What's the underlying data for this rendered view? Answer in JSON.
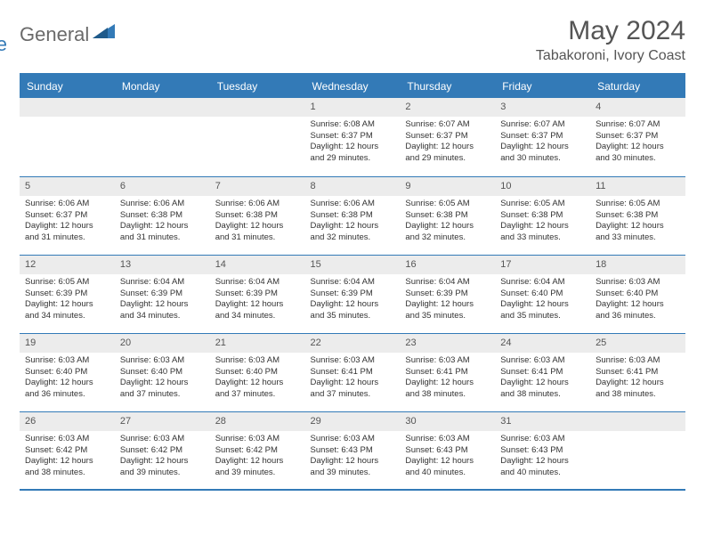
{
  "logo": {
    "text1": "General",
    "text2": "Blue"
  },
  "title": "May 2024",
  "location": "Tabakoroni, Ivory Coast",
  "colors": {
    "brand": "#337ab7",
    "header_bg": "#337ab7",
    "header_text": "#ffffff",
    "daynum_bg": "#ececec",
    "text": "#333333",
    "muted": "#555555"
  },
  "day_headers": [
    "Sunday",
    "Monday",
    "Tuesday",
    "Wednesday",
    "Thursday",
    "Friday",
    "Saturday"
  ],
  "weeks": [
    [
      {
        "n": "",
        "sr": "",
        "ss": "",
        "dl": ""
      },
      {
        "n": "",
        "sr": "",
        "ss": "",
        "dl": ""
      },
      {
        "n": "",
        "sr": "",
        "ss": "",
        "dl": ""
      },
      {
        "n": "1",
        "sr": "Sunrise: 6:08 AM",
        "ss": "Sunset: 6:37 PM",
        "dl": "Daylight: 12 hours and 29 minutes."
      },
      {
        "n": "2",
        "sr": "Sunrise: 6:07 AM",
        "ss": "Sunset: 6:37 PM",
        "dl": "Daylight: 12 hours and 29 minutes."
      },
      {
        "n": "3",
        "sr": "Sunrise: 6:07 AM",
        "ss": "Sunset: 6:37 PM",
        "dl": "Daylight: 12 hours and 30 minutes."
      },
      {
        "n": "4",
        "sr": "Sunrise: 6:07 AM",
        "ss": "Sunset: 6:37 PM",
        "dl": "Daylight: 12 hours and 30 minutes."
      }
    ],
    [
      {
        "n": "5",
        "sr": "Sunrise: 6:06 AM",
        "ss": "Sunset: 6:37 PM",
        "dl": "Daylight: 12 hours and 31 minutes."
      },
      {
        "n": "6",
        "sr": "Sunrise: 6:06 AM",
        "ss": "Sunset: 6:38 PM",
        "dl": "Daylight: 12 hours and 31 minutes."
      },
      {
        "n": "7",
        "sr": "Sunrise: 6:06 AM",
        "ss": "Sunset: 6:38 PM",
        "dl": "Daylight: 12 hours and 31 minutes."
      },
      {
        "n": "8",
        "sr": "Sunrise: 6:06 AM",
        "ss": "Sunset: 6:38 PM",
        "dl": "Daylight: 12 hours and 32 minutes."
      },
      {
        "n": "9",
        "sr": "Sunrise: 6:05 AM",
        "ss": "Sunset: 6:38 PM",
        "dl": "Daylight: 12 hours and 32 minutes."
      },
      {
        "n": "10",
        "sr": "Sunrise: 6:05 AM",
        "ss": "Sunset: 6:38 PM",
        "dl": "Daylight: 12 hours and 33 minutes."
      },
      {
        "n": "11",
        "sr": "Sunrise: 6:05 AM",
        "ss": "Sunset: 6:38 PM",
        "dl": "Daylight: 12 hours and 33 minutes."
      }
    ],
    [
      {
        "n": "12",
        "sr": "Sunrise: 6:05 AM",
        "ss": "Sunset: 6:39 PM",
        "dl": "Daylight: 12 hours and 34 minutes."
      },
      {
        "n": "13",
        "sr": "Sunrise: 6:04 AM",
        "ss": "Sunset: 6:39 PM",
        "dl": "Daylight: 12 hours and 34 minutes."
      },
      {
        "n": "14",
        "sr": "Sunrise: 6:04 AM",
        "ss": "Sunset: 6:39 PM",
        "dl": "Daylight: 12 hours and 34 minutes."
      },
      {
        "n": "15",
        "sr": "Sunrise: 6:04 AM",
        "ss": "Sunset: 6:39 PM",
        "dl": "Daylight: 12 hours and 35 minutes."
      },
      {
        "n": "16",
        "sr": "Sunrise: 6:04 AM",
        "ss": "Sunset: 6:39 PM",
        "dl": "Daylight: 12 hours and 35 minutes."
      },
      {
        "n": "17",
        "sr": "Sunrise: 6:04 AM",
        "ss": "Sunset: 6:40 PM",
        "dl": "Daylight: 12 hours and 35 minutes."
      },
      {
        "n": "18",
        "sr": "Sunrise: 6:03 AM",
        "ss": "Sunset: 6:40 PM",
        "dl": "Daylight: 12 hours and 36 minutes."
      }
    ],
    [
      {
        "n": "19",
        "sr": "Sunrise: 6:03 AM",
        "ss": "Sunset: 6:40 PM",
        "dl": "Daylight: 12 hours and 36 minutes."
      },
      {
        "n": "20",
        "sr": "Sunrise: 6:03 AM",
        "ss": "Sunset: 6:40 PM",
        "dl": "Daylight: 12 hours and 37 minutes."
      },
      {
        "n": "21",
        "sr": "Sunrise: 6:03 AM",
        "ss": "Sunset: 6:40 PM",
        "dl": "Daylight: 12 hours and 37 minutes."
      },
      {
        "n": "22",
        "sr": "Sunrise: 6:03 AM",
        "ss": "Sunset: 6:41 PM",
        "dl": "Daylight: 12 hours and 37 minutes."
      },
      {
        "n": "23",
        "sr": "Sunrise: 6:03 AM",
        "ss": "Sunset: 6:41 PM",
        "dl": "Daylight: 12 hours and 38 minutes."
      },
      {
        "n": "24",
        "sr": "Sunrise: 6:03 AM",
        "ss": "Sunset: 6:41 PM",
        "dl": "Daylight: 12 hours and 38 minutes."
      },
      {
        "n": "25",
        "sr": "Sunrise: 6:03 AM",
        "ss": "Sunset: 6:41 PM",
        "dl": "Daylight: 12 hours and 38 minutes."
      }
    ],
    [
      {
        "n": "26",
        "sr": "Sunrise: 6:03 AM",
        "ss": "Sunset: 6:42 PM",
        "dl": "Daylight: 12 hours and 38 minutes."
      },
      {
        "n": "27",
        "sr": "Sunrise: 6:03 AM",
        "ss": "Sunset: 6:42 PM",
        "dl": "Daylight: 12 hours and 39 minutes."
      },
      {
        "n": "28",
        "sr": "Sunrise: 6:03 AM",
        "ss": "Sunset: 6:42 PM",
        "dl": "Daylight: 12 hours and 39 minutes."
      },
      {
        "n": "29",
        "sr": "Sunrise: 6:03 AM",
        "ss": "Sunset: 6:43 PM",
        "dl": "Daylight: 12 hours and 39 minutes."
      },
      {
        "n": "30",
        "sr": "Sunrise: 6:03 AM",
        "ss": "Sunset: 6:43 PM",
        "dl": "Daylight: 12 hours and 40 minutes."
      },
      {
        "n": "31",
        "sr": "Sunrise: 6:03 AM",
        "ss": "Sunset: 6:43 PM",
        "dl": "Daylight: 12 hours and 40 minutes."
      },
      {
        "n": "",
        "sr": "",
        "ss": "",
        "dl": ""
      }
    ]
  ]
}
